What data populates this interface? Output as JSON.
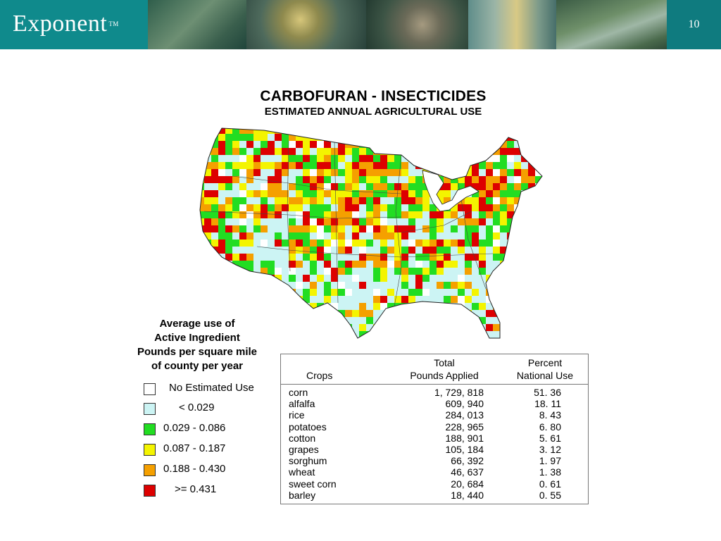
{
  "header": {
    "logo_text": "Exponent",
    "logo_tm": "TM",
    "page_number": "10",
    "brand_color": "#0f7b7f"
  },
  "title": "CARBOFURAN - INSECTICIDES",
  "subtitle": "ESTIMATED ANNUAL AGRICULTURAL USE",
  "map": {
    "region": "conterminous-united-states",
    "kind": "county-choropleth",
    "classes": [
      {
        "label": "No Estimated Use",
        "color": "#ffffff"
      },
      {
        "label": "< 0.029",
        "color": "#ccf4f4"
      },
      {
        "label": "0.029 - 0.086",
        "color": "#22dd22"
      },
      {
        "label": "0.087 - 0.187",
        "color": "#f4f400"
      },
      {
        "label": "0.188 - 0.430",
        "color": "#f5a000"
      },
      {
        "label": ">= 0.431",
        "color": "#dd0000"
      }
    ]
  },
  "legend": {
    "title_lines": [
      "Average use of",
      "Active Ingredient",
      "Pounds per square mile",
      "of county per year"
    ]
  },
  "table": {
    "header": {
      "crops": "Crops",
      "total_line1": "Total",
      "total_line2": "Pounds Applied",
      "percent_line1": "Percent",
      "percent_line2": "National Use"
    },
    "rows": [
      {
        "crop": "corn",
        "pounds": "1, 729, 818",
        "percent": "51. 36"
      },
      {
        "crop": "alfalfa",
        "pounds": "609, 940",
        "percent": "18. 11"
      },
      {
        "crop": "rice",
        "pounds": "284, 013",
        "percent": "8. 43"
      },
      {
        "crop": "potatoes",
        "pounds": "228, 965",
        "percent": "6. 80"
      },
      {
        "crop": "cotton",
        "pounds": "188, 901",
        "percent": "5. 61"
      },
      {
        "crop": "grapes",
        "pounds": "105, 184",
        "percent": "3. 12"
      },
      {
        "crop": "sorghum",
        "pounds": "66, 392",
        "percent": "1. 97"
      },
      {
        "crop": "wheat",
        "pounds": "46, 637",
        "percent": "1. 38"
      },
      {
        "crop": "sweet corn",
        "pounds": "20, 684",
        "percent": "0. 61"
      },
      {
        "crop": "barley",
        "pounds": "18, 440",
        "percent": "0. 55"
      }
    ]
  }
}
